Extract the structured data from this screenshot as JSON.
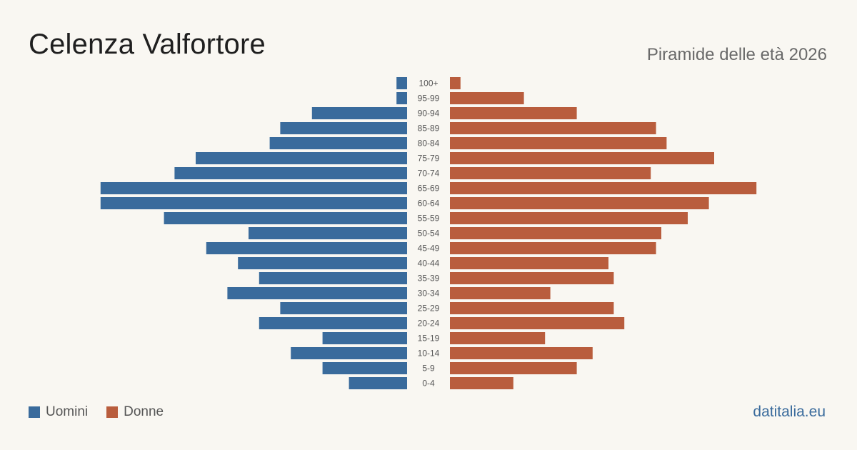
{
  "header": {
    "title": "Celenza Valfortore",
    "subtitle": "Piramide delle età 2026"
  },
  "legend": {
    "men_label": "Uomini",
    "women_label": "Donne"
  },
  "footer": {
    "brand": "datitalia.eu"
  },
  "colors": {
    "men": "#3a6b9c",
    "women": "#b95d3d",
    "background": "#f9f7f2"
  },
  "chart_data": {
    "type": "bar",
    "orientation": "horizontal-pyramid",
    "title": "Celenza Valfortore",
    "subtitle": "Piramide delle età 2026",
    "categories": [
      "100+",
      "95-99",
      "90-94",
      "85-89",
      "80-84",
      "75-79",
      "70-74",
      "65-69",
      "60-64",
      "55-59",
      "50-54",
      "45-49",
      "40-44",
      "35-39",
      "30-34",
      "25-29",
      "20-24",
      "15-19",
      "10-14",
      "5-9",
      "0-4"
    ],
    "series": [
      {
        "name": "Uomini",
        "values": [
          1,
          1,
          9,
          12,
          13,
          20,
          22,
          29,
          29,
          23,
          15,
          19,
          16,
          14,
          17,
          12,
          14,
          8,
          11,
          8,
          5.5
        ]
      },
      {
        "name": "Donne",
        "values": [
          1,
          7,
          12,
          19.5,
          20.5,
          25,
          19,
          29,
          24.5,
          22.5,
          20,
          19.5,
          15,
          15.5,
          9.5,
          15.5,
          16.5,
          9,
          13.5,
          12,
          6
        ]
      }
    ],
    "legend_position": "bottom-left",
    "grid": false
  }
}
